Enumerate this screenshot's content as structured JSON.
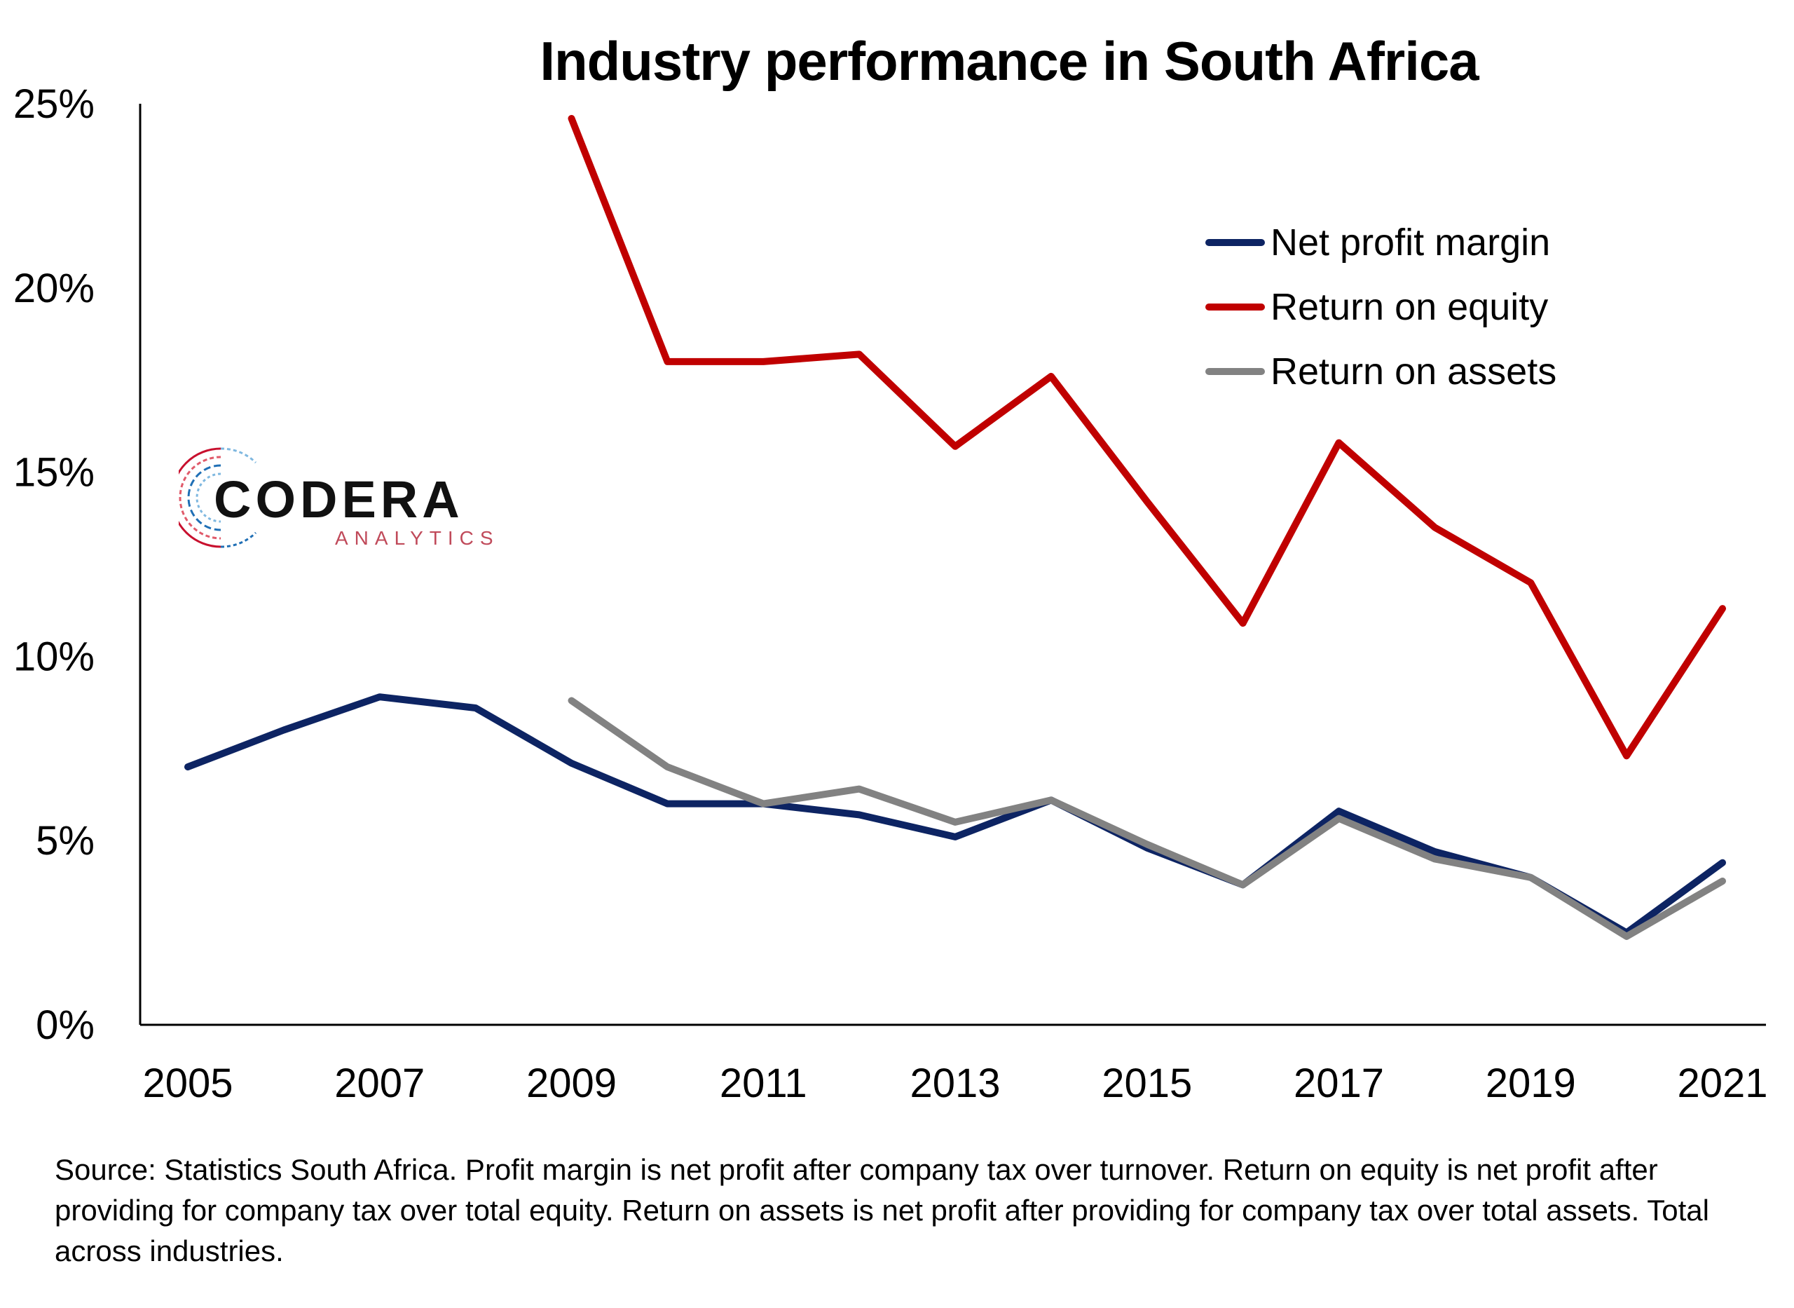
{
  "chart_data": {
    "type": "line",
    "title": "Industry performance in South Africa",
    "x": [
      2005,
      2006,
      2007,
      2008,
      2009,
      2010,
      2011,
      2012,
      2013,
      2014,
      2015,
      2016,
      2017,
      2018,
      2019,
      2020,
      2021
    ],
    "x_tick_labels": [
      "2005",
      "2007",
      "2009",
      "2011",
      "2013",
      "2015",
      "2017",
      "2019",
      "2021"
    ],
    "y_tick_labels": [
      "0%",
      "5%",
      "10%",
      "15%",
      "20%",
      "25%"
    ],
    "ylim": [
      0,
      25
    ],
    "y_unit": "%",
    "grid": false,
    "legend_position": "top-right",
    "series": [
      {
        "name": "Net profit margin",
        "color": "#0d2463",
        "values": [
          7.0,
          8.0,
          8.9,
          8.6,
          7.1,
          6.0,
          6.0,
          5.7,
          5.1,
          6.1,
          4.8,
          3.8,
          5.8,
          4.7,
          4.0,
          2.5,
          4.4
        ]
      },
      {
        "name": "Return on equity",
        "color": "#c00000",
        "values": [
          null,
          null,
          null,
          null,
          24.6,
          18.0,
          18.0,
          18.2,
          15.7,
          17.6,
          14.2,
          10.9,
          15.8,
          13.5,
          12.0,
          7.3,
          11.3
        ]
      },
      {
        "name": "Return on assets",
        "color": "#828282",
        "values": [
          null,
          null,
          null,
          null,
          8.8,
          7.0,
          6.0,
          6.4,
          5.5,
          6.1,
          4.9,
          3.8,
          5.6,
          4.5,
          4.0,
          2.4,
          3.9
        ]
      }
    ]
  },
  "source_note": "Source: Statistics South Africa. Profit margin is net profit after company tax over turnover. Return on equity is net profit after providing for company tax over total equity. Return on assets is net profit after providing for company tax over total assets. Total across industries.",
  "logo": {
    "name": "CODERA",
    "subtitle": "ANALYTICS",
    "colors": [
      "#c8102e",
      "#1f6fb5",
      "#7fb8e0"
    ]
  }
}
